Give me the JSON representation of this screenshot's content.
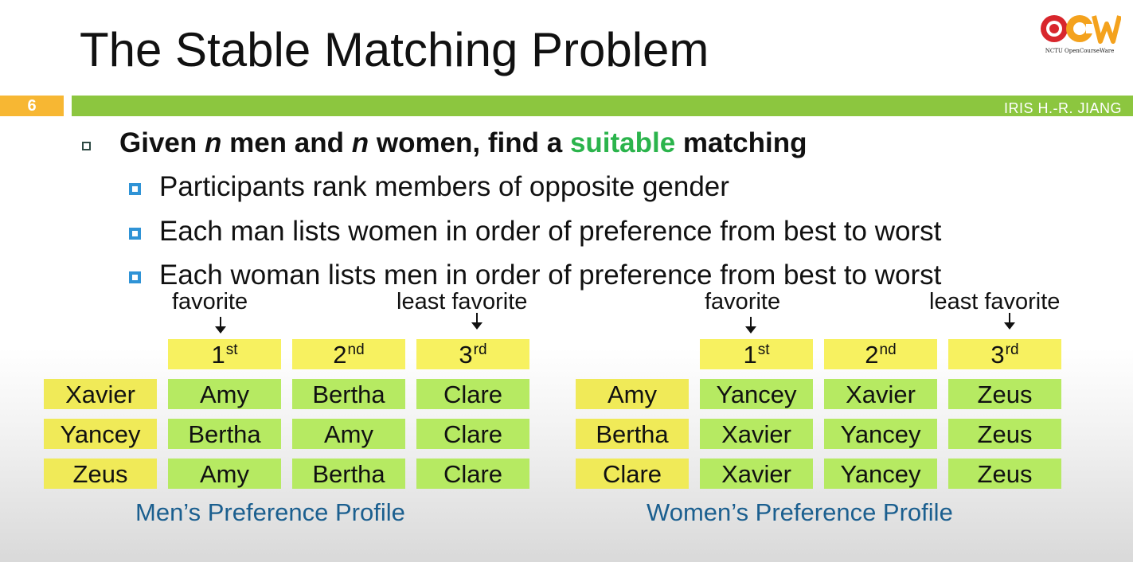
{
  "slide": {
    "title": "The Stable Matching Problem",
    "number": "6",
    "author": "IRIS H.-R. JIANG",
    "logo": {
      "name": "NCTU OpenCourseWare",
      "caption": "NCTU OpenCourseWare"
    }
  },
  "content": {
    "main_bullet": {
      "prefix": "Given ",
      "n1": "n",
      "mid1": " men and ",
      "n2": "n",
      "mid2": " women, find a ",
      "highlight": "suitable",
      "suffix": " matching"
    },
    "sub_bullets": [
      "Participants rank members of opposite gender",
      "Each man lists women in order of preference from best to worst",
      "Each woman lists men in order of preference from best to worst"
    ]
  },
  "labels": {
    "favorite": "favorite",
    "least_favorite": "least favorite"
  },
  "rank_headers": [
    {
      "num": "1",
      "suffix": "st"
    },
    {
      "num": "2",
      "suffix": "nd"
    },
    {
      "num": "3",
      "suffix": "rd"
    }
  ],
  "men_table": {
    "caption": "Men’s Preference Profile",
    "rows": [
      {
        "name": "Xavier",
        "prefs": [
          "Amy",
          "Bertha",
          "Clare"
        ]
      },
      {
        "name": "Yancey",
        "prefs": [
          "Bertha",
          "Amy",
          "Clare"
        ]
      },
      {
        "name": "Zeus",
        "prefs": [
          "Amy",
          "Bertha",
          "Clare"
        ]
      }
    ]
  },
  "women_table": {
    "caption": "Women’s Preference Profile",
    "rows": [
      {
        "name": "Amy",
        "prefs": [
          "Yancey",
          "Xavier",
          "Zeus"
        ]
      },
      {
        "name": "Bertha",
        "prefs": [
          "Xavier",
          "Yancey",
          "Zeus"
        ]
      },
      {
        "name": "Clare",
        "prefs": [
          "Xavier",
          "Yancey",
          "Zeus"
        ]
      }
    ]
  },
  "colors": {
    "bar_green": "#8cc63f",
    "number_orange": "#f7b733",
    "highlight_green": "#2bb44c",
    "caption_blue": "#1b5f8f",
    "header_yellow": "#f7f160",
    "cell_green": "#b6ea62",
    "bullet_blue": "#2f93d6"
  }
}
